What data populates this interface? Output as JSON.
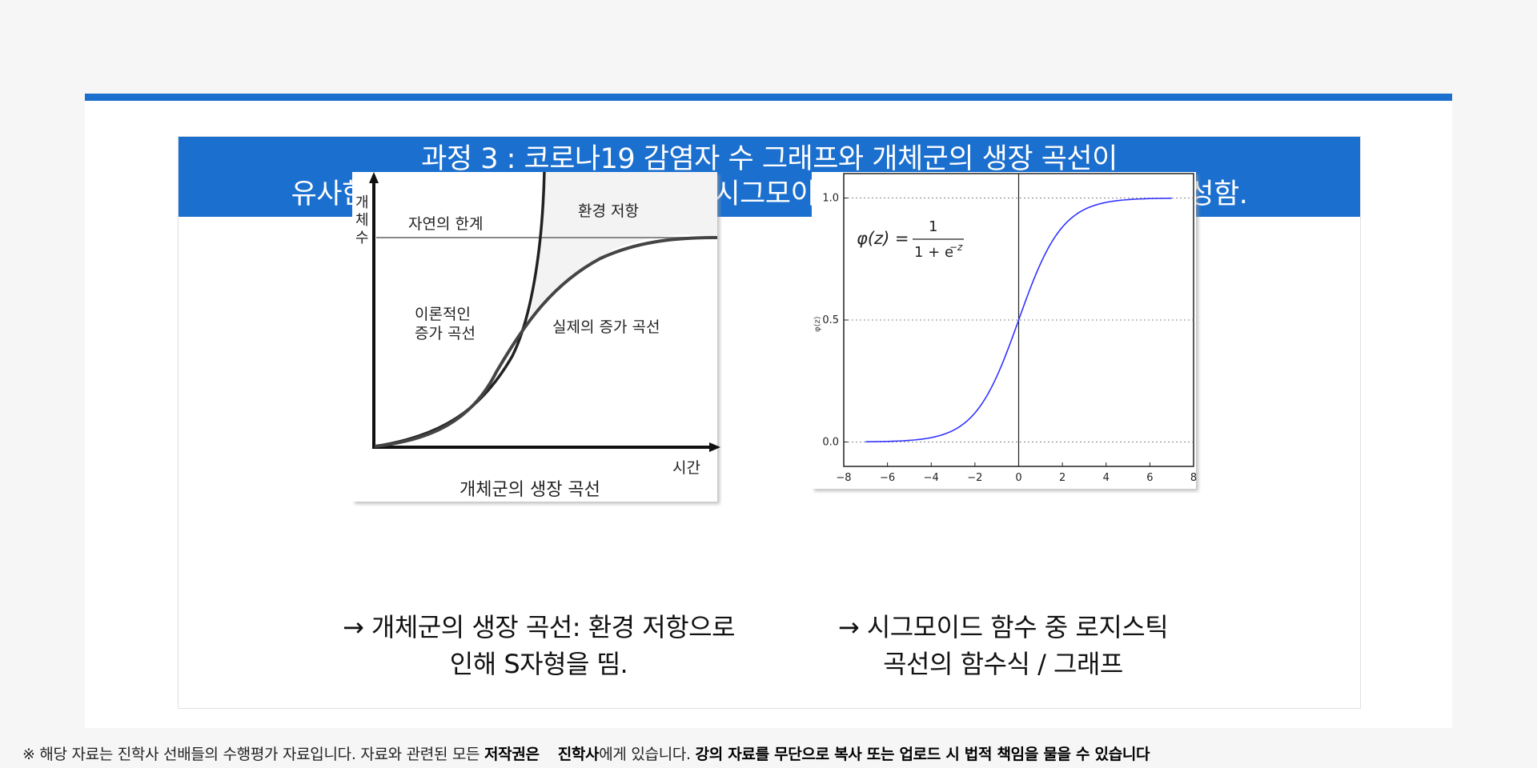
{
  "header": {
    "line1": "과정 3 : 코로나19 감염자 수 그래프와 개체군의 생장 곡선이",
    "line2": "유사한 형태를 띠는 것을 알게 된 후, 시그모이드 함수에 대한 추가 보고서를 작성함."
  },
  "left_figure": {
    "y_axis_label": [
      "개",
      "체",
      "수"
    ],
    "x_axis_label": "시간",
    "limit_label": "자연의 한계",
    "resistance_label": "환경 저항",
    "theoretical_label": [
      "이론적인",
      "증가 곡선"
    ],
    "actual_label": "실제의 증가 곡선",
    "caption": "개체군의 생장 곡선"
  },
  "right_figure": {
    "formula_lhs": "φ(z) =",
    "formula_num": "1",
    "formula_den": "1 + e",
    "formula_exp": "−z",
    "y_axis_label": "φ(z)"
  },
  "captions": {
    "left": [
      "→ 개체군의 생장 곡선: 환경 저항으로",
      "인해 S자형을 띰."
    ],
    "right": [
      "→ 시그모이드 함수 중 로지스틱",
      "곡선의 함수식 / 그래프"
    ]
  },
  "footer": {
    "part1": "※ 해당 자료는 진학사 선배들의 수행평가 자료입니다. 자료와 관련된 모든 ",
    "bold1": "저작권은",
    "bold2": "진학사",
    "part2": "에게 있습니다. ",
    "bold3": "강의 자료를 무단으로 복사 또는 업로드 시 법적 책임을 물을 수 있습니다"
  },
  "chart_data": {
    "type": "line",
    "title": "",
    "xlabel": "",
    "ylabel": "φ(z)",
    "xlim": [
      -8,
      8
    ],
    "ylim": [
      -0.1,
      1.1
    ],
    "x_ticks": [
      -8,
      -6,
      -4,
      -2,
      0,
      2,
      4,
      6,
      8
    ],
    "y_ticks": [
      0.0,
      0.5,
      1.0
    ],
    "grid_y": [
      0.0,
      0.5,
      1.0
    ],
    "series": [
      {
        "function": "1/(1+exp(-z))",
        "x_range": [
          -7,
          7
        ],
        "color": "#3333ff"
      }
    ],
    "vline_x": 0
  }
}
